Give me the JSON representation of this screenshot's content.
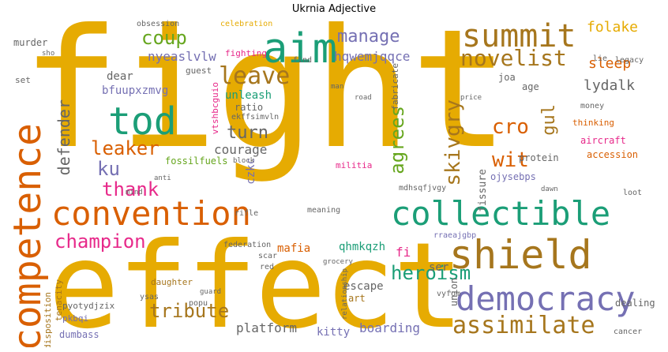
{
  "title": "Ukrnia Adjective",
  "colors": {
    "gold": "#e6ab02",
    "teal": "#1b9e77",
    "orange": "#d95f02",
    "purple": "#7570b3",
    "pink": "#e7298a",
    "green": "#66a61e",
    "brown": "#a6761d",
    "gray": "#666666"
  },
  "words": {
    "fight": "fight",
    "effect": "effect",
    "convention": "convention",
    "collectible": "collectible",
    "shield": "shield",
    "democracy": "democracy",
    "aim": "aim",
    "tod": "tod",
    "competence": "competence",
    "summit": "summit",
    "novelist": "novelist",
    "assimilate": "assimilate",
    "coup": "coup",
    "manage": "manage",
    "leave": "leave",
    "leaker": "leaker",
    "champion": "champion",
    "heroism": "heroism",
    "tribute": "tribute",
    "cro": "cro",
    "wit": "wit",
    "gul": "gul",
    "skivgry": "skivgry",
    "agrees": "agrees",
    "thank": "thank",
    "ku": "ku",
    "defender": "defender",
    "turn": "turn",
    "courage": "courage",
    "folake": "folake",
    "sleep": "sleep",
    "lydalk": "lydalk",
    "nyeaslvlw": "nyeaslvlw",
    "hqwemjqqce": "hqwemjqqce",
    "bfuupxzmvg": "bfuupxzmvg",
    "dear": "dear",
    "unleash": "unleash",
    "platform": "platform",
    "boarding": "boarding",
    "kitty": "kitty",
    "mafia": "mafia",
    "qhmkqzh": "qhmkqzh",
    "fi": "fi",
    "ser": "ser",
    "escape": "escape",
    "dumbass": "dumbass",
    "daughter": "daughter",
    "fissure": "fissure",
    "fossilfuels": "fossilfuels",
    "accession": "accession",
    "protein": "protein",
    "aircraft": "aircraft",
    "ojysebps": "ojysebps",
    "czkc": "czkc",
    "ratio": "ratio",
    "union": "union",
    "dealing": "dealing",
    "tenacity": "tenacity",
    "pyotydjzix": "pyotydjzix",
    "pkbqi": "pkbqi",
    "disposition": "disposition",
    "militia": "militia",
    "fabricate": "fabricate",
    "age": "age",
    "joa": "joa",
    "thinking": "thinking",
    "money": "money",
    "murder": "murder",
    "set": "set",
    "guest": "guest",
    "fighting": "fighting",
    "find": "find",
    "obsession": "obsession",
    "celebration": "celebration",
    "legacy": "legacy",
    "lie": "lie",
    "rifle": "rifle",
    "red": "red",
    "scar": "scar",
    "federation": "federation",
    "meaning": "meaning",
    "grocery": "grocery",
    "art": "art",
    "popu": "popu",
    "ysas": "ysas",
    "vyfom": "vyfom",
    "rraeajgbp": "rraeajgbp",
    "mdhsqfjvgy": "mdhsqfjvgy",
    "vtshbcguio": "vtshbcguio",
    "ekffsimvln": "ekffsimvln",
    "cancer": "cancer",
    "loot": "loot",
    "dawn": "dawn",
    "road": "road",
    "man": "man",
    "mind": "mind",
    "anti": "anti",
    "block": "block",
    "relationship": "relationship",
    "guard": "guard",
    "sho": "sho",
    "price": "price"
  }
}
